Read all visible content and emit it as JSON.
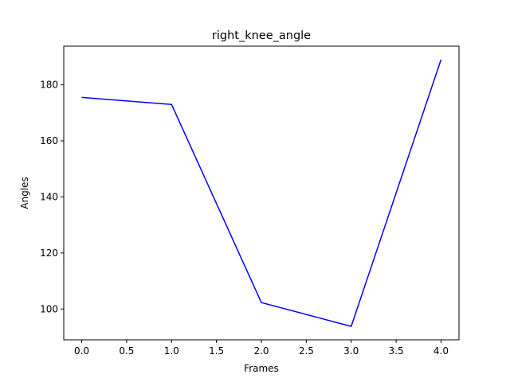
{
  "chart_data": {
    "type": "line",
    "title": "right_knee_angle",
    "xlabel": "Frames",
    "ylabel": "Angles",
    "x": [
      0,
      1,
      2,
      3,
      4
    ],
    "series": [
      {
        "values": [
          175.5,
          173.0,
          102.3,
          93.8,
          189.0
        ],
        "color": "#0000ff"
      }
    ],
    "xlim": [
      -0.2,
      4.2
    ],
    "ylim": [
      89.0,
      193.8
    ],
    "xticks": [
      0.0,
      0.5,
      1.0,
      1.5,
      2.0,
      2.5,
      3.0,
      3.5,
      4.0
    ],
    "xtick_labels": [
      "0.0",
      "0.5",
      "1.0",
      "1.5",
      "2.0",
      "2.5",
      "3.0",
      "3.5",
      "4.0"
    ],
    "yticks": [
      100,
      120,
      140,
      160,
      180
    ],
    "ytick_labels": [
      "100",
      "120",
      "140",
      "160",
      "180"
    ],
    "grid": false,
    "legend": false
  }
}
